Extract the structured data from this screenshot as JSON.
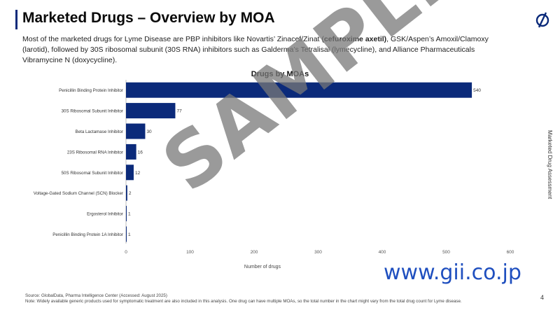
{
  "header": {
    "title": "Marketed Drugs – Overview by MOA",
    "intro_part1": "Most of the marketed drugs for Lyme Disease are PBP inhibitors like Novartis’ Zinacef/Zinat (",
    "intro_bold": "cefuroxime axetil)",
    "intro_part2": ", GSK/Aspen’s Amoxil/Clamoxy (larotid), followed by 30S ribosomal subunit (30S RNA) inhibitors such as Galderma’s Tetralisal (lymecycline), and Alliance Pharmaceuticals Vibramycine N (doxycycline)."
  },
  "side_label": "Marketed Drug Assessment",
  "watermark": {
    "url": "www.gii.co.jp",
    "sample": "SAMPLE"
  },
  "footer": {
    "source": "Source: GlobalData, Pharma Intelligence Center (Accessed: August 2025)",
    "note": "Note: Widely available generic products used for symptomatic treatment are also included in this analysis. One drug can have multiple MOAs, so the total number in the chart might vary from the total drug count for Lyme disease.",
    "page_number": "4"
  },
  "colors": {
    "bar": "#0b2a7a",
    "accent": "#0b2a7a",
    "watermark_url": "#1f4fbf"
  },
  "chart_data": {
    "type": "bar",
    "orientation": "horizontal",
    "title": "Drugs by MOAs",
    "xlabel": "Number of drugs",
    "ylabel": "",
    "xlim": [
      0,
      600
    ],
    "xticks": [
      0,
      100,
      200,
      300,
      400,
      500,
      600
    ],
    "grid": false,
    "categories": [
      "Penicillin Binding Protein Inhibitor",
      "30S Ribosomal Subunit Inhibitor",
      "Beta Lactamase Inhibitor",
      "23S Ribosomal RNA Inhibitor",
      "50S Ribosomal Subunit Inhibitor",
      "Voltage-Gated Sodium Channel (SCN) Blocker",
      "Ergosterol Inhibitor",
      "Penicillin Binding Protein 1A Inhibitor"
    ],
    "values": [
      540,
      77,
      30,
      16,
      12,
      2,
      1,
      1
    ],
    "data_labels": [
      "540",
      "77",
      "30",
      "16",
      "12",
      "2",
      "1",
      "1"
    ]
  }
}
